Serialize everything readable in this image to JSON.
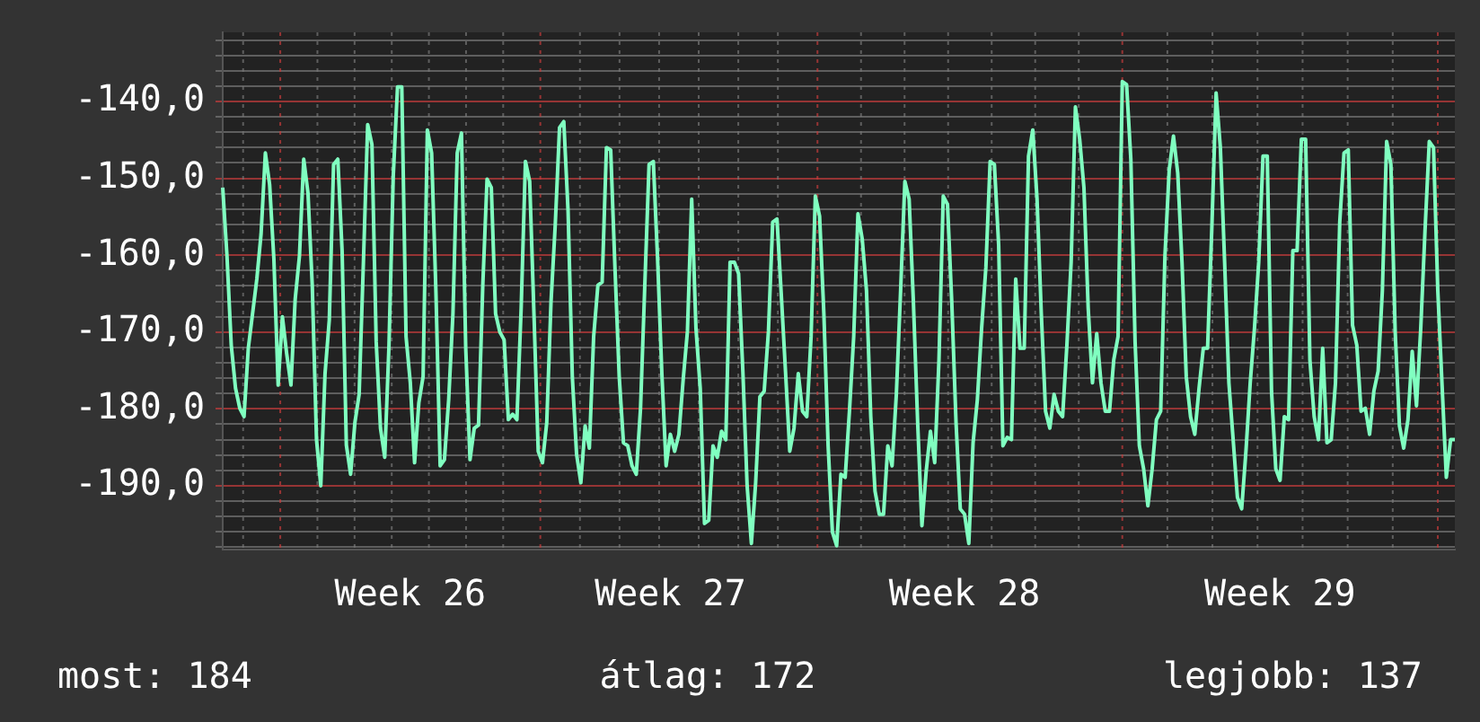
{
  "chart_data": {
    "type": "line",
    "categories": [
      null,
      null,
      null,
      null,
      null,
      null,
      null,
      null,
      null,
      null,
      null,
      null,
      null,
      null,
      null,
      null,
      null,
      null,
      null,
      null,
      null,
      null,
      null,
      null,
      null,
      null,
      null,
      null,
      null,
      null,
      null,
      null,
      null,
      null,
      null,
      null,
      null,
      null,
      null,
      null,
      null,
      null,
      null,
      null,
      "Week 26",
      null,
      null,
      null,
      null,
      null,
      null,
      null,
      null,
      null,
      null,
      null,
      null,
      null,
      null,
      null,
      null,
      null,
      null,
      null,
      null,
      null,
      null,
      null,
      null,
      null,
      null,
      null,
      null,
      null,
      null,
      null,
      null,
      null,
      null,
      null,
      null,
      null,
      null,
      null,
      null,
      null,
      null,
      null,
      null,
      null,
      null,
      null,
      null,
      null,
      null,
      null,
      null,
      null,
      null,
      null,
      null,
      null,
      null,
      null,
      null,
      "Week 27",
      null,
      null,
      null,
      null,
      null,
      null,
      null,
      null,
      null,
      null,
      null,
      null,
      null,
      null,
      null,
      null,
      null,
      null,
      null,
      null,
      null,
      null,
      null,
      null,
      null,
      null,
      null,
      null,
      null,
      null,
      null,
      null,
      null,
      null,
      null,
      null,
      null,
      null,
      null,
      null,
      null,
      null,
      null,
      null,
      null,
      null,
      null,
      null,
      null,
      null,
      null,
      null,
      null,
      null,
      null,
      null,
      null,
      null,
      null,
      null,
      null,
      null,
      null,
      null,
      null,
      null,
      null,
      null,
      "Week 28",
      null,
      null,
      null,
      null,
      null,
      null,
      null,
      null,
      null,
      null,
      null,
      null,
      null,
      null,
      null,
      null,
      null,
      null,
      null,
      null,
      null,
      null,
      null,
      null,
      null,
      null,
      null,
      null,
      null,
      null,
      null,
      null,
      null,
      null,
      null,
      null,
      null,
      null,
      null,
      null,
      null,
      null,
      null,
      null,
      null,
      null,
      null,
      null,
      null,
      null,
      null,
      null,
      null,
      null,
      null,
      null,
      null,
      null,
      null,
      null,
      null,
      null,
      null,
      null,
      null,
      null,
      null,
      null,
      null,
      null,
      null,
      null,
      null,
      "Week 29",
      null,
      null,
      null,
      null,
      null,
      null,
      null,
      null,
      null,
      null,
      null,
      null,
      null,
      null,
      null,
      null,
      null,
      null,
      null,
      null,
      null,
      null,
      null,
      null,
      null,
      null,
      null,
      null,
      null,
      null,
      null,
      null,
      null,
      null,
      null,
      null,
      null,
      null,
      null,
      null,
      null
    ],
    "series": [
      {
        "color": "#80ffc0",
        "values": [
          -151.2,
          -160.1,
          -171.7,
          -177.3,
          -179.9,
          -181.0,
          -172.1,
          -167.6,
          -163.1,
          -157.2,
          -146.7,
          -150.8,
          -160.5,
          -176.9,
          -168.0,
          -172.8,
          -176.9,
          -165.7,
          -160.1,
          -147.5,
          -151.9,
          -163.9,
          -184.0,
          -190.0,
          -175.4,
          -168.4,
          -148.2,
          -147.5,
          -159.4,
          -184.7,
          -188.5,
          -181.8,
          -178.1,
          -160.9,
          -143.0,
          -145.6,
          -171.3,
          -182.5,
          -186.3,
          -171.7,
          -149.7,
          -138.1,
          -138.1,
          -170.6,
          -176.6,
          -187.0,
          -179.2,
          -175.8,
          -143.7,
          -146.7,
          -164.6,
          -187.4,
          -186.6,
          -178.8,
          -167.6,
          -146.7,
          -144.1,
          -172.1,
          -186.6,
          -182.5,
          -182.1,
          -163.9,
          -150.1,
          -151.2,
          -167.6,
          -170.0,
          -171.0,
          -181.4,
          -180.7,
          -181.4,
          -166.9,
          -147.8,
          -150.4,
          -167.6,
          -185.5,
          -187.0,
          -181.8,
          -166.1,
          -156.0,
          -143.4,
          -142.6,
          -154.2,
          -175.8,
          -185.9,
          -189.6,
          -182.2,
          -185.1,
          -170.6,
          -163.9,
          -163.5,
          -146.0,
          -146.3,
          -161.6,
          -175.8,
          -184.4,
          -184.8,
          -187.4,
          -188.5,
          -179.9,
          -163.9,
          -148.2,
          -147.8,
          -160.5,
          -175.4,
          -187.4,
          -183.3,
          -185.5,
          -183.3,
          -176.2,
          -169.9,
          -152.7,
          -169.5,
          -177.3,
          -194.9,
          -194.5,
          -184.8,
          -186.3,
          -182.9,
          -184.0,
          -160.9,
          -160.9,
          -162.4,
          -175.1,
          -190.0,
          -197.5,
          -189.6,
          -178.4,
          -177.7,
          -169.9,
          -155.7,
          -155.3,
          -165.0,
          -175.1,
          -185.5,
          -182.5,
          -175.4,
          -180.3,
          -181.0,
          -170.6,
          -152.3,
          -154.9,
          -167.6,
          -184.8,
          -196.0,
          -197.8,
          -188.5,
          -188.9,
          -180.3,
          -170.6,
          -154.6,
          -157.9,
          -164.6,
          -181.0,
          -190.7,
          -193.7,
          -193.7,
          -184.8,
          -187.4,
          -178.1,
          -164.6,
          -150.4,
          -152.7,
          -166.1,
          -181.8,
          -195.2,
          -188.1,
          -182.9,
          -187.0,
          -173.6,
          -152.3,
          -153.4,
          -166.1,
          -181.8,
          -193.0,
          -193.7,
          -197.5,
          -184.4,
          -178.8,
          -169.5,
          -161.6,
          -147.8,
          -148.2,
          -158.7,
          -184.8,
          -183.7,
          -184.0,
          -163.1,
          -172.1,
          -172.1,
          -147.1,
          -143.7,
          -152.7,
          -167.6,
          -180.3,
          -182.5,
          -178.1,
          -180.3,
          -181.0,
          -171.7,
          -160.9,
          -140.7,
          -144.9,
          -151.2,
          -166.9,
          -176.6,
          -170.2,
          -176.6,
          -180.3,
          -180.3,
          -173.6,
          -170.6,
          -137.4,
          -137.8,
          -147.5,
          -171.3,
          -184.8,
          -187.8,
          -192.6,
          -187.8,
          -181.4,
          -180.3,
          -160.1,
          -148.9,
          -144.5,
          -149.3,
          -160.9,
          -175.8,
          -181.0,
          -183.3,
          -177.3,
          -172.1,
          -172.1,
          -156.4,
          -138.9,
          -146.0,
          -160.9,
          -176.6,
          -184.0,
          -191.5,
          -193.0,
          -185.5,
          -176.6,
          -169.5,
          -160.9,
          -147.1,
          -147.1,
          -177.7,
          -187.8,
          -189.3,
          -181.0,
          -181.4,
          -159.4,
          -159.4,
          -144.9,
          -144.9,
          -173.6,
          -181.0,
          -184.0,
          -172.1,
          -184.4,
          -184.0,
          -176.6,
          -155.7,
          -146.7,
          -146.3,
          -169.1,
          -171.7,
          -180.3,
          -179.9,
          -183.3,
          -177.7,
          -175.1,
          -164.6,
          -145.2,
          -148.2,
          -169.9,
          -182.2,
          -185.1,
          -181.4,
          -172.5,
          -179.6,
          -169.5,
          -156.8,
          -145.2,
          -146.0,
          -164.6,
          -176.9,
          -188.9,
          -184.0,
          -184.0
        ]
      }
    ],
    "ylim": [
      -198.3,
      -131
    ],
    "yticks": [
      {
        "value": -198,
        "label": null
      },
      {
        "value": -196,
        "label": null
      },
      {
        "value": -194,
        "label": null
      },
      {
        "value": -192,
        "label": null
      },
      {
        "value": -190,
        "label": "-190,0"
      },
      {
        "value": -188,
        "label": null
      },
      {
        "value": -186,
        "label": null
      },
      {
        "value": -184,
        "label": null
      },
      {
        "value": -182,
        "label": null
      },
      {
        "value": -180,
        "label": "-180,0"
      },
      {
        "value": -178,
        "label": null
      },
      {
        "value": -176,
        "label": null
      },
      {
        "value": -174,
        "label": null
      },
      {
        "value": -172,
        "label": null
      },
      {
        "value": -170,
        "label": "-170,0"
      },
      {
        "value": -168,
        "label": null
      },
      {
        "value": -166,
        "label": null
      },
      {
        "value": -164,
        "label": null
      },
      {
        "value": -162,
        "label": null
      },
      {
        "value": -160,
        "label": "-160,0"
      },
      {
        "value": -158,
        "label": null
      },
      {
        "value": -156,
        "label": null
      },
      {
        "value": -154,
        "label": null
      },
      {
        "value": -152,
        "label": null
      },
      {
        "value": -150,
        "label": "-150,0"
      },
      {
        "value": -148,
        "label": null
      },
      {
        "value": -146,
        "label": null
      },
      {
        "value": -144,
        "label": null
      },
      {
        "value": -142,
        "label": null
      },
      {
        "value": -140,
        "label": "-140,0"
      },
      {
        "value": -138,
        "label": null
      },
      {
        "value": -136,
        "label": null
      },
      {
        "value": -134,
        "label": null
      },
      {
        "value": -132,
        "label": null
      }
    ],
    "grid": true,
    "legend": false,
    "marker": "none",
    "line_style": "solid",
    "annotations": [
      "most: 184",
      "átlag: 172",
      "legjobb: 137"
    ]
  }
}
